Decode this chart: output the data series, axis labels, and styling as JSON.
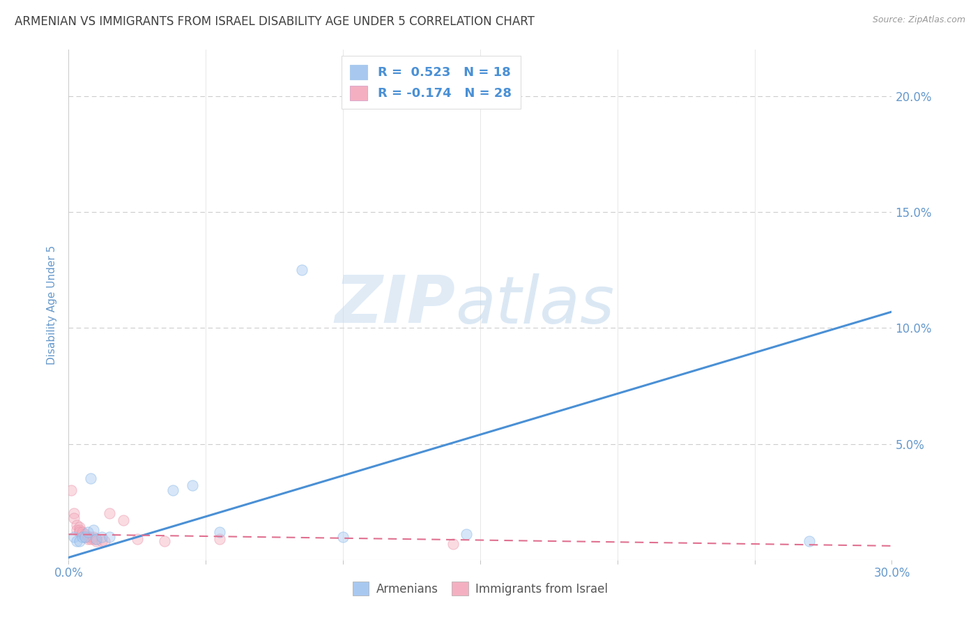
{
  "title": "ARMENIAN VS IMMIGRANTS FROM ISRAEL DISABILITY AGE UNDER 5 CORRELATION CHART",
  "source": "Source: ZipAtlas.com",
  "ylabel": "Disability Age Under 5",
  "xlim": [
    0.0,
    0.3
  ],
  "ylim": [
    0.0,
    0.22
  ],
  "xticks": [
    0.0,
    0.05,
    0.1,
    0.15,
    0.2,
    0.25,
    0.3
  ],
  "xtick_labels_show": [
    "0.0%",
    "",
    "",
    "",
    "",
    "",
    "30.0%"
  ],
  "yticks": [
    0.0,
    0.05,
    0.1,
    0.15,
    0.2
  ],
  "ytick_labels_right": [
    "",
    "5.0%",
    "10.0%",
    "15.0%",
    "20.0%"
  ],
  "blue_color": "#A8C8F0",
  "blue_edge_color": "#7EB3E8",
  "pink_color": "#F4B0C0",
  "pink_edge_color": "#E890A8",
  "blue_line_color": "#4A90D5",
  "pink_line_color": "#E07090",
  "watermark_zip": "ZIP",
  "watermark_atlas": "atlas",
  "R_blue": 0.523,
  "N_blue": 18,
  "R_pink": -0.174,
  "N_pink": 28,
  "blue_dots_x": [
    0.002,
    0.003,
    0.004,
    0.005,
    0.006,
    0.007,
    0.008,
    0.009,
    0.01,
    0.012,
    0.015,
    0.038,
    0.045,
    0.055,
    0.085,
    0.1,
    0.145,
    0.27
  ],
  "blue_dots_y": [
    0.01,
    0.008,
    0.008,
    0.01,
    0.01,
    0.012,
    0.035,
    0.013,
    0.009,
    0.01,
    0.01,
    0.03,
    0.032,
    0.012,
    0.125,
    0.01,
    0.011,
    0.008
  ],
  "pink_dots_x": [
    0.001,
    0.002,
    0.002,
    0.003,
    0.003,
    0.004,
    0.004,
    0.004,
    0.005,
    0.005,
    0.006,
    0.006,
    0.007,
    0.007,
    0.008,
    0.008,
    0.009,
    0.009,
    0.01,
    0.01,
    0.012,
    0.013,
    0.015,
    0.02,
    0.025,
    0.035,
    0.055,
    0.14
  ],
  "pink_dots_y": [
    0.03,
    0.02,
    0.018,
    0.015,
    0.013,
    0.014,
    0.013,
    0.012,
    0.011,
    0.012,
    0.01,
    0.011,
    0.01,
    0.009,
    0.01,
    0.009,
    0.009,
    0.01,
    0.009,
    0.008,
    0.008,
    0.008,
    0.02,
    0.017,
    0.009,
    0.008,
    0.009,
    0.007
  ],
  "blue_trend_x": [
    0.0,
    0.3
  ],
  "blue_trend_y": [
    0.001,
    0.107
  ],
  "pink_trend_x": [
    0.0,
    0.3
  ],
  "pink_trend_y": [
    0.011,
    0.006
  ],
  "background_color": "#FFFFFF",
  "grid_color": "#CCCCCC",
  "title_color": "#404040",
  "axis_label_color": "#6699CC",
  "tick_label_color": "#6699CC",
  "legend_blue_label": "Armenians",
  "legend_pink_label": "Immigrants from Israel",
  "dot_size": 120,
  "dot_alpha": 0.45
}
